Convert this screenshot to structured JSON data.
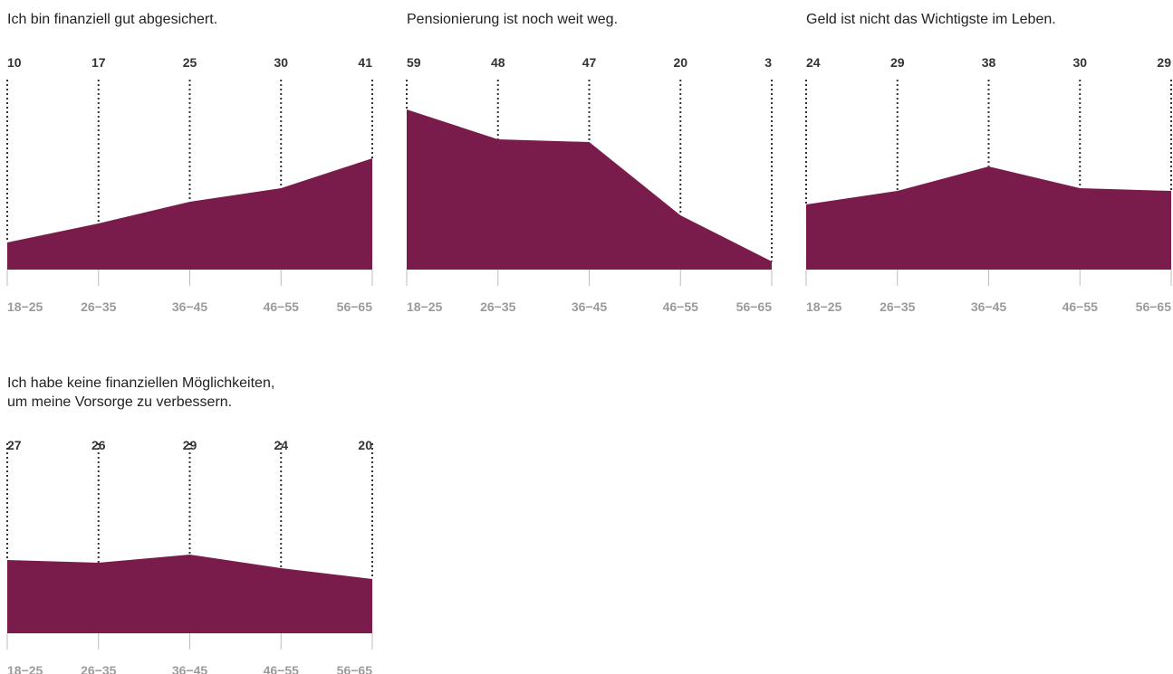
{
  "colors": {
    "area": "#7a1c4b",
    "value_text": "#333333",
    "tick_text": "#9b9b9b",
    "dotted_line": "#333333",
    "title_text": "#222222",
    "axis_tick": "#bdbdbd"
  },
  "chart_data": [
    {
      "type": "area",
      "title_lines": [
        "Ich bin finanziell gut abgesichert."
      ],
      "categories": [
        "18−25",
        "26−35",
        "36−45",
        "46−55",
        "56−65"
      ],
      "values": [
        10,
        17,
        25,
        30,
        41
      ],
      "ylim": [
        0,
        60
      ]
    },
    {
      "type": "area",
      "title_lines": [
        "Pensionierung ist noch weit weg."
      ],
      "categories": [
        "18−25",
        "26−35",
        "36−45",
        "46−55",
        "56−65"
      ],
      "values": [
        59,
        48,
        47,
        20,
        3
      ],
      "ylim": [
        0,
        60
      ]
    },
    {
      "type": "area",
      "title_lines": [
        "Geld ist nicht das Wichtigste im Leben."
      ],
      "categories": [
        "18−25",
        "26−35",
        "36−45",
        "46−55",
        "56−65"
      ],
      "values": [
        24,
        29,
        38,
        30,
        29
      ],
      "ylim": [
        0,
        60
      ]
    },
    {
      "type": "area",
      "title_lines": [
        "Ich habe keine finanziellen Möglichkeiten,",
        "um meine Vorsorge zu verbessern."
      ],
      "categories": [
        "18−25",
        "26−35",
        "36−45",
        "46−55",
        "56−65"
      ],
      "values": [
        27,
        26,
        29,
        24,
        20
      ],
      "ylim": [
        0,
        60
      ]
    }
  ]
}
